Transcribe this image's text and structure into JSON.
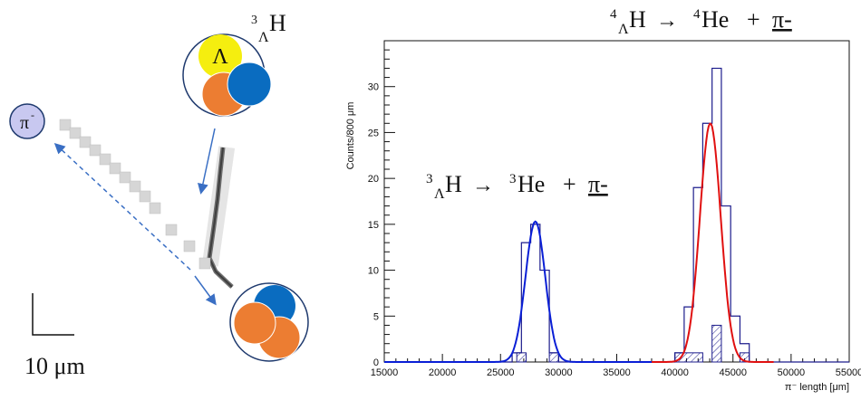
{
  "schematic": {
    "nucleus_label": {
      "sup": "3",
      "sub": "Λ",
      "main": "H"
    },
    "lambda_symbol": "Λ",
    "pion_label": {
      "base": "π",
      "sup": "-"
    },
    "scale_label": "10 μm",
    "colors": {
      "lambda": "#f5ee0f",
      "proton": "#ec7d32",
      "neutron": "#0a6cc0",
      "ring": "#1f3a6e",
      "arrow": "#3a6fc4",
      "pion_fill": "#c8c8f0"
    }
  },
  "annotations": {
    "decay_4": {
      "parent_sup": "4",
      "parent_sub": "Λ",
      "parent": "H",
      "arrow": "→",
      "daughter_sup": "4",
      "daughter": "He",
      "plus": "+",
      "pion": "π-"
    },
    "decay_3": {
      "parent_sup": "3",
      "parent_sub": "Λ",
      "parent": "H",
      "arrow": "→",
      "daughter_sup": "3",
      "daughter": "He",
      "plus": "+",
      "pion": "π-"
    }
  },
  "chart_data": {
    "type": "bar",
    "xlabel": "π⁻ length [μm]",
    "ylabel": "Counts/800 μm",
    "xlim": [
      15000,
      55000
    ],
    "ylim": [
      0,
      35
    ],
    "x_ticks": [
      15000,
      20000,
      25000,
      30000,
      35000,
      40000,
      45000,
      50000,
      55000
    ],
    "y_ticks": [
      0,
      5,
      10,
      15,
      20,
      25,
      30
    ],
    "bin_width": 800,
    "histogram_bin_edges": [
      26000,
      26800,
      27600,
      28400,
      29200,
      30000,
      30800,
      40000,
      40800,
      41600,
      42400,
      43200,
      44000,
      44800,
      45600,
      46400
    ],
    "series": [
      {
        "style": "histogram",
        "color": "#1c1c8c",
        "bins": [
          {
            "x0": 26000,
            "x1": 26800,
            "y": 1
          },
          {
            "x0": 26800,
            "x1": 27600,
            "y": 13
          },
          {
            "x0": 27600,
            "x1": 28400,
            "y": 15
          },
          {
            "x0": 28400,
            "x1": 29200,
            "y": 10
          },
          {
            "x0": 29200,
            "x1": 30000,
            "y": 1
          },
          {
            "x0": 30000,
            "x1": 30800,
            "y": 0
          },
          {
            "x0": 40000,
            "x1": 40800,
            "y": 1
          },
          {
            "x0": 40800,
            "x1": 41600,
            "y": 6
          },
          {
            "x0": 41600,
            "x1": 42400,
            "y": 19
          },
          {
            "x0": 42400,
            "x1": 43200,
            "y": 26
          },
          {
            "x0": 43200,
            "x1": 44000,
            "y": 32
          },
          {
            "x0": 44000,
            "x1": 44800,
            "y": 17
          },
          {
            "x0": 44800,
            "x1": 45600,
            "y": 5
          },
          {
            "x0": 45600,
            "x1": 46400,
            "y": 2
          }
        ]
      },
      {
        "style": "hatched",
        "color": "#1c1c8c",
        "bins": [
          {
            "x0": 26400,
            "x1": 27200,
            "y": 1
          },
          {
            "x0": 29200,
            "x1": 30000,
            "y": 1
          },
          {
            "x0": 40000,
            "x1": 42400,
            "y": 1
          },
          {
            "x0": 43200,
            "x1": 44000,
            "y": 4
          },
          {
            "x0": 45600,
            "x1": 46400,
            "y": 1
          }
        ]
      },
      {
        "style": "gaussian_fit",
        "color": "#0a1fd6",
        "mean": 28000,
        "sigma": 850,
        "amplitude": 15.3,
        "range": [
          15000,
          39000
        ]
      },
      {
        "style": "gaussian_fit",
        "color": "#e01010",
        "mean": 43050,
        "sigma": 900,
        "amplitude": 26,
        "range": [
          38000,
          48500
        ]
      }
    ]
  }
}
